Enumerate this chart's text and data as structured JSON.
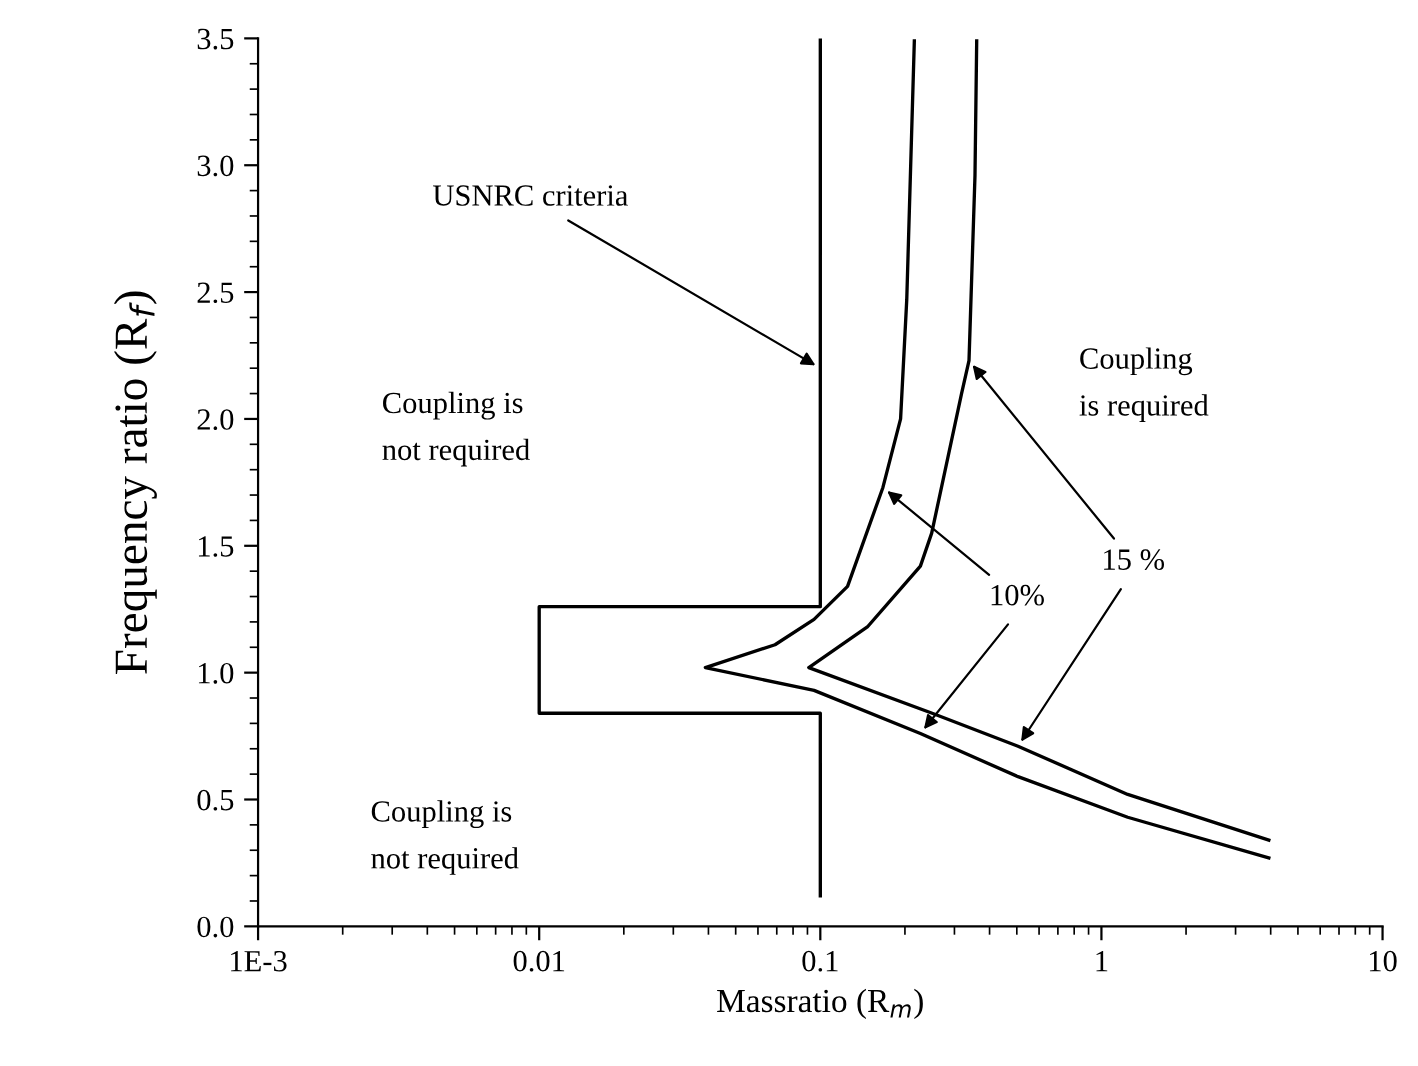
{
  "chart_data": {
    "type": "line",
    "xlabel": "Massratio (R$_{m}$)",
    "ylabel": "Frequency ratio (R$_{f}$)",
    "log": "x",
    "xlim": [
      0.001,
      10
    ],
    "xticks": [
      {
        "value": 0.001,
        "label": "1E-3"
      },
      0.01,
      0.1,
      1,
      10
    ],
    "ylim": [
      0,
      3.5
    ],
    "yticks": [
      {
        "value": 0,
        "label": "0.0"
      },
      0.5,
      {
        "value": 1,
        "label": "1.0"
      },
      1.5,
      {
        "value": 2,
        "label": "2.0"
      },
      2.5,
      {
        "value": 3,
        "label": "3.0"
      },
      3.5
    ],
    "grid": false,
    "marker": "none",
    "line_style": "solid",
    "series": [
      {
        "color": "#000000",
        "x": [
          0.1,
          0.1,
          0.01,
          0.01,
          0.1,
          0.1
        ],
        "values": [
          0.12,
          0.84,
          0.84,
          1.26,
          1.26,
          3.5
        ]
      },
      {
        "color": "#000000",
        "x": [
          0.216,
          0.203,
          0.193,
          0.167,
          0.125,
          0.095,
          0.069,
          0.039,
          0.095,
          0.227,
          0.505,
          1.24,
          3.94
        ],
        "values": [
          3.49,
          2.47,
          2.0,
          1.73,
          1.34,
          1.21,
          1.11,
          1.02,
          0.93,
          0.76,
          0.59,
          0.43,
          0.27
        ]
      },
      {
        "color": "#000000",
        "x": [
          0.36,
          0.355,
          0.338,
          0.318,
          0.249,
          0.227,
          0.147,
          0.091,
          0.25,
          0.505,
          1.24,
          3.94
        ],
        "values": [
          3.49,
          2.96,
          2.23,
          2.1,
          1.55,
          1.42,
          1.18,
          1.02,
          0.84,
          0.71,
          0.52,
          0.34
        ]
      }
    ],
    "annotations": [
      {
        "text": "USNRC criteria",
        "x": 0.1,
        "y": 2.2
      },
      "Coupling is\nnot required",
      "Coupling is\nnot required",
      "Coupling\nis required",
      {
        "text": "10%",
        "x": 0.167,
        "y": 1.73
      },
      {
        "text": "15 %",
        "x": 0.338,
        "y": 2.23
      }
    ]
  }
}
